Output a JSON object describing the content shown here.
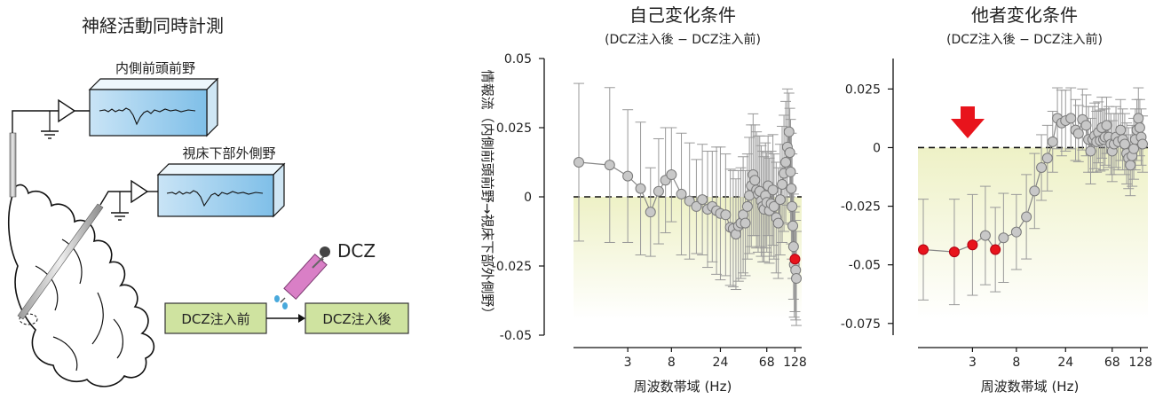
{
  "schematic": {
    "title": "神経活動同時計測",
    "region_a": "内側前頭前野",
    "region_b": "視床下部外側野",
    "drug": "DCZ",
    "before_label": "DCZ注入前",
    "after_label": "DCZ注入後"
  },
  "y_axis_label": "情報流（内側前頭前野→視床下部外側野）",
  "chart_data": [
    {
      "type": "scatter",
      "title": "自己変化条件",
      "subtitle": "(DCZ注入後 − DCZ注入前)",
      "xlabel": "周波数帯域 (Hz)",
      "ylabel": "情報流（内側前頭前野→視床下部外側野）",
      "x_scale": "log2",
      "x_ticks": [
        3,
        8,
        24,
        68,
        128
      ],
      "x_tick_labels": [
        "3",
        "8",
        "24",
        "68",
        "128"
      ],
      "ylim": [
        -0.05,
        0.05
      ],
      "y_ticks": [
        -0.05,
        -0.025,
        0,
        0.025,
        0.05
      ],
      "y_tick_labels": [
        "-0.05",
        "-0.025",
        "0",
        "0.025",
        "0.05"
      ],
      "zero_line": "dashed",
      "grid": false,
      "colors": {
        "point": "#c8c8c8",
        "significant": "#e8141c",
        "line": "#888888",
        "shade": "#f3f4c8"
      },
      "points": [
        {
          "x": 1,
          "y": 0.0125,
          "err": 0.0285,
          "sig": false
        },
        {
          "x": 2,
          "y": 0.0115,
          "err": 0.028,
          "sig": false
        },
        {
          "x": 3,
          "y": 0.0075,
          "err": 0.024,
          "sig": false
        },
        {
          "x": 4,
          "y": 0.003,
          "err": 0.024,
          "sig": false
        },
        {
          "x": 5,
          "y": -0.0055,
          "err": 0.016,
          "sig": false
        },
        {
          "x": 6,
          "y": 0.002,
          "err": 0.019,
          "sig": false
        },
        {
          "x": 7,
          "y": 0.006,
          "err": 0.019,
          "sig": false
        },
        {
          "x": 8,
          "y": 0.008,
          "err": 0.017,
          "sig": false
        },
        {
          "x": 10,
          "y": 0.001,
          "err": 0.022,
          "sig": false
        },
        {
          "x": 12,
          "y": -0.0015,
          "err": 0.021,
          "sig": false
        },
        {
          "x": 14,
          "y": -0.0035,
          "err": 0.017,
          "sig": false
        },
        {
          "x": 16,
          "y": -0.001,
          "err": 0.02,
          "sig": false
        },
        {
          "x": 18,
          "y": -0.0045,
          "err": 0.021,
          "sig": false
        },
        {
          "x": 20,
          "y": -0.0035,
          "err": 0.02,
          "sig": false
        },
        {
          "x": 22,
          "y": -0.005,
          "err": 0.023,
          "sig": false
        },
        {
          "x": 24,
          "y": -0.006,
          "err": 0.024,
          "sig": false
        },
        {
          "x": 27,
          "y": -0.0065,
          "err": 0.022,
          "sig": false
        },
        {
          "x": 30,
          "y": -0.011,
          "err": 0.021,
          "sig": false
        },
        {
          "x": 32,
          "y": -0.0115,
          "err": 0.021,
          "sig": false
        },
        {
          "x": 34,
          "y": -0.0135,
          "err": 0.02,
          "sig": false
        },
        {
          "x": 36,
          "y": -0.0105,
          "err": 0.02,
          "sig": false
        },
        {
          "x": 38,
          "y": -0.0095,
          "err": 0.02,
          "sig": false
        },
        {
          "x": 40,
          "y": -0.0065,
          "err": 0.021,
          "sig": false
        },
        {
          "x": 42,
          "y": -0.0095,
          "err": 0.019,
          "sig": false
        },
        {
          "x": 44,
          "y": -0.0035,
          "err": 0.019,
          "sig": false
        },
        {
          "x": 46,
          "y": 0.0005,
          "err": 0.021,
          "sig": false
        },
        {
          "x": 48,
          "y": 0.004,
          "err": 0.022,
          "sig": false
        },
        {
          "x": 50,
          "y": 0.008,
          "err": 0.022,
          "sig": false
        },
        {
          "x": 52,
          "y": 0.006,
          "err": 0.02,
          "sig": false
        },
        {
          "x": 54,
          "y": 0.0025,
          "err": 0.021,
          "sig": false
        },
        {
          "x": 56,
          "y": 0.001,
          "err": 0.021,
          "sig": false
        },
        {
          "x": 58,
          "y": 0.002,
          "err": 0.02,
          "sig": false
        },
        {
          "x": 60,
          "y": -0.0015,
          "err": 0.02,
          "sig": false
        },
        {
          "x": 62,
          "y": -0.0035,
          "err": 0.02,
          "sig": false
        },
        {
          "x": 64,
          "y": -0.0045,
          "err": 0.019,
          "sig": false
        },
        {
          "x": 66,
          "y": 0.0005,
          "err": 0.019,
          "sig": false
        },
        {
          "x": 68,
          "y": -0.002,
          "err": 0.018,
          "sig": false
        },
        {
          "x": 70,
          "y": 0.004,
          "err": 0.018,
          "sig": false
        },
        {
          "x": 72,
          "y": -0.005,
          "err": 0.019,
          "sig": false
        },
        {
          "x": 75,
          "y": -0.0025,
          "err": 0.019,
          "sig": false
        },
        {
          "x": 78,
          "y": 0.0025,
          "err": 0.02,
          "sig": false
        },
        {
          "x": 80,
          "y": -0.0035,
          "err": 0.019,
          "sig": false
        },
        {
          "x": 84,
          "y": -0.0075,
          "err": 0.02,
          "sig": false
        },
        {
          "x": 88,
          "y": -0.0095,
          "err": 0.02,
          "sig": false
        },
        {
          "x": 92,
          "y": -0.001,
          "err": 0.02,
          "sig": false
        },
        {
          "x": 96,
          "y": 0.0045,
          "err": 0.021,
          "sig": false
        },
        {
          "x": 100,
          "y": 0.0085,
          "err": 0.021,
          "sig": false
        },
        {
          "x": 104,
          "y": 0.0125,
          "err": 0.022,
          "sig": false
        },
        {
          "x": 108,
          "y": 0.018,
          "err": 0.021,
          "sig": false
        },
        {
          "x": 112,
          "y": 0.0235,
          "err": 0.014,
          "sig": false
        },
        {
          "x": 114,
          "y": 0.016,
          "err": 0.016,
          "sig": false
        },
        {
          "x": 116,
          "y": 0.009,
          "err": 0.019,
          "sig": false
        },
        {
          "x": 118,
          "y": 0.003,
          "err": 0.02,
          "sig": false
        },
        {
          "x": 120,
          "y": -0.0035,
          "err": 0.019,
          "sig": false
        },
        {
          "x": 122,
          "y": -0.0105,
          "err": 0.019,
          "sig": false
        },
        {
          "x": 124,
          "y": -0.018,
          "err": 0.019,
          "sig": false
        },
        {
          "x": 126,
          "y": -0.0245,
          "err": 0.019,
          "sig": false
        },
        {
          "x": 128,
          "y": -0.0225,
          "err": 0.019,
          "sig": true
        },
        {
          "x": 130,
          "y": -0.0265,
          "err": 0.018,
          "sig": false
        },
        {
          "x": 132,
          "y": -0.0295,
          "err": 0.017,
          "sig": false
        }
      ]
    },
    {
      "type": "scatter",
      "title": "他者変化条件",
      "subtitle": "(DCZ注入後 − DCZ注入前)",
      "xlabel": "周波数帯域 (Hz)",
      "x_scale": "log2",
      "x_ticks": [
        3,
        8,
        24,
        68,
        128
      ],
      "x_tick_labels": [
        "3",
        "8",
        "24",
        "68",
        "128"
      ],
      "ylim": [
        -0.08,
        0.038
      ],
      "y_ticks": [
        -0.075,
        -0.05,
        -0.025,
        0,
        0.025
      ],
      "y_tick_labels": [
        "-0.075",
        "-0.05",
        "-0.025",
        "0",
        "0.025"
      ],
      "zero_line": "dashed",
      "grid": false,
      "colors": {
        "point": "#c8c8c8",
        "significant": "#e8141c",
        "line": "#888888",
        "shade": "#f3f4c8",
        "arrow": "#e8141c"
      },
      "points": [
        {
          "x": 1,
          "y": -0.0435,
          "err": 0.0215,
          "sig": true
        },
        {
          "x": 2,
          "y": -0.0445,
          "err": 0.0225,
          "sig": true
        },
        {
          "x": 3,
          "y": -0.0415,
          "err": 0.0215,
          "sig": true
        },
        {
          "x": 4,
          "y": -0.0375,
          "err": 0.021,
          "sig": false
        },
        {
          "x": 5,
          "y": -0.0435,
          "err": 0.018,
          "sig": true
        },
        {
          "x": 6,
          "y": -0.0385,
          "err": 0.019,
          "sig": false
        },
        {
          "x": 8,
          "y": -0.036,
          "err": 0.016,
          "sig": false
        },
        {
          "x": 10,
          "y": -0.0295,
          "err": 0.018,
          "sig": false
        },
        {
          "x": 12,
          "y": -0.0185,
          "err": 0.016,
          "sig": false
        },
        {
          "x": 14,
          "y": -0.0085,
          "err": 0.014,
          "sig": false
        },
        {
          "x": 16,
          "y": -0.0045,
          "err": 0.014,
          "sig": false
        },
        {
          "x": 18,
          "y": 0.0025,
          "err": 0.013,
          "sig": false
        },
        {
          "x": 20,
          "y": 0.0125,
          "err": 0.013,
          "sig": false
        },
        {
          "x": 22,
          "y": 0.0105,
          "err": 0.014,
          "sig": false
        },
        {
          "x": 24,
          "y": 0.0115,
          "err": 0.013,
          "sig": false
        },
        {
          "x": 27,
          "y": 0.0125,
          "err": 0.013,
          "sig": false
        },
        {
          "x": 30,
          "y": 0.0075,
          "err": 0.013,
          "sig": false
        },
        {
          "x": 32,
          "y": 0.006,
          "err": 0.012,
          "sig": false
        },
        {
          "x": 35,
          "y": 0.012,
          "err": 0.013,
          "sig": false
        },
        {
          "x": 38,
          "y": 0.0095,
          "err": 0.013,
          "sig": false
        },
        {
          "x": 40,
          "y": 0.0035,
          "err": 0.014,
          "sig": false
        },
        {
          "x": 42,
          "y": -0.0015,
          "err": 0.014,
          "sig": false
        },
        {
          "x": 44,
          "y": 0.0035,
          "err": 0.014,
          "sig": false
        },
        {
          "x": 46,
          "y": 0.005,
          "err": 0.014,
          "sig": false
        },
        {
          "x": 48,
          "y": 0.0025,
          "err": 0.013,
          "sig": false
        },
        {
          "x": 50,
          "y": 0.0065,
          "err": 0.013,
          "sig": false
        },
        {
          "x": 52,
          "y": 0.003,
          "err": 0.013,
          "sig": false
        },
        {
          "x": 54,
          "y": 0.0085,
          "err": 0.013,
          "sig": false
        },
        {
          "x": 56,
          "y": 0.0035,
          "err": 0.013,
          "sig": false
        },
        {
          "x": 58,
          "y": 0.0045,
          "err": 0.012,
          "sig": false
        },
        {
          "x": 60,
          "y": 0.0095,
          "err": 0.012,
          "sig": false
        },
        {
          "x": 63,
          "y": 0.0045,
          "err": 0.013,
          "sig": false
        },
        {
          "x": 66,
          "y": 0.0015,
          "err": 0.013,
          "sig": false
        },
        {
          "x": 68,
          "y": -0.0015,
          "err": 0.013,
          "sig": false
        },
        {
          "x": 71,
          "y": 0.0015,
          "err": 0.013,
          "sig": false
        },
        {
          "x": 74,
          "y": 0.0045,
          "err": 0.013,
          "sig": false
        },
        {
          "x": 78,
          "y": 0.0025,
          "err": 0.012,
          "sig": false
        },
        {
          "x": 82,
          "y": 0.0075,
          "err": 0.013,
          "sig": false
        },
        {
          "x": 86,
          "y": 0.0035,
          "err": 0.013,
          "sig": false
        },
        {
          "x": 90,
          "y": 0.0015,
          "err": 0.013,
          "sig": false
        },
        {
          "x": 94,
          "y": -0.0025,
          "err": 0.013,
          "sig": false
        },
        {
          "x": 98,
          "y": -0.0045,
          "err": 0.013,
          "sig": false
        },
        {
          "x": 102,
          "y": -0.0075,
          "err": 0.013,
          "sig": false
        },
        {
          "x": 106,
          "y": -0.0035,
          "err": 0.013,
          "sig": false
        },
        {
          "x": 110,
          "y": -0.0005,
          "err": 0.013,
          "sig": false
        },
        {
          "x": 114,
          "y": 0.0035,
          "err": 0.013,
          "sig": false
        },
        {
          "x": 118,
          "y": 0.0075,
          "err": 0.013,
          "sig": false
        },
        {
          "x": 122,
          "y": 0.0125,
          "err": 0.013,
          "sig": false
        },
        {
          "x": 126,
          "y": 0.0085,
          "err": 0.012,
          "sig": false
        },
        {
          "x": 130,
          "y": 0.0045,
          "err": 0.012,
          "sig": false
        },
        {
          "x": 134,
          "y": 0.0015,
          "err": 0.012,
          "sig": false
        }
      ]
    }
  ]
}
